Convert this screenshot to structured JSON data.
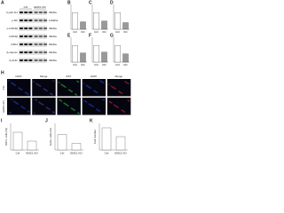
{
  "blot": {
    "label": "A",
    "groups": [
      "Ctrl",
      "EMC1 KD"
    ],
    "rows": [
      "Cyclin D1",
      "p-Rb",
      "p-GSK3β",
      "GSK3β",
      "FZD4",
      "β-catenin",
      "β-Actin"
    ],
    "sizes": [
      "36kDa",
      "110kDa",
      "46kDa",
      "46kDa",
      "60kDa",
      "92kDa",
      "42kDa"
    ]
  },
  "small_charts": [
    {
      "label": "B",
      "categories": [
        "Ctrl",
        "KD"
      ],
      "values": [
        1,
        0.45
      ],
      "ylim": [
        0,
        1.5
      ]
    },
    {
      "label": "C",
      "categories": [
        "Ctrl",
        "KD"
      ],
      "values": [
        1,
        0.5
      ],
      "ylim": [
        0,
        1.5
      ]
    },
    {
      "label": "D",
      "categories": [
        "Ctrl",
        "KD"
      ],
      "values": [
        1,
        0.4
      ],
      "ylim": [
        0,
        1.5
      ]
    },
    {
      "label": "E",
      "categories": [
        "Ctrl",
        "KD"
      ],
      "values": [
        1,
        0.55
      ],
      "ylim": [
        0,
        1.5
      ]
    },
    {
      "label": "F",
      "categories": [
        "Ctrl",
        "KD"
      ],
      "values": [
        1,
        0.6
      ],
      "ylim": [
        0,
        1.5
      ]
    },
    {
      "label": "G",
      "categories": [
        "Ctrl",
        "KD"
      ],
      "values": [
        1,
        0.5
      ],
      "ylim": [
        0,
        1.5
      ]
    }
  ],
  "images": {
    "label": "H",
    "columns": [
      "DAPI",
      "Merge",
      "Ki67",
      "DAPI",
      "Merge"
    ],
    "rows": [
      "Ctrl",
      "EMC1 KD"
    ]
  },
  "scatter_charts": [
    {
      "label": "I",
      "ylabel": "Ki67+ cells (%)",
      "categories": [
        "Ctrl",
        "EMC1 KD"
      ],
      "values": [
        40,
        20
      ],
      "ylim": [
        0,
        60
      ]
    },
    {
      "label": "J",
      "ylabel": "EdU+ cells (%)",
      "categories": [
        "Ctrl",
        "EMC1 KD"
      ],
      "values": [
        35,
        15
      ],
      "ylim": [
        0,
        60
      ]
    },
    {
      "label": "K",
      "ylabel": "Cell number",
      "categories": [
        "Ctrl",
        "EMC1 KD"
      ],
      "values": [
        50,
        30
      ],
      "ylim": [
        0,
        60
      ]
    }
  ]
}
